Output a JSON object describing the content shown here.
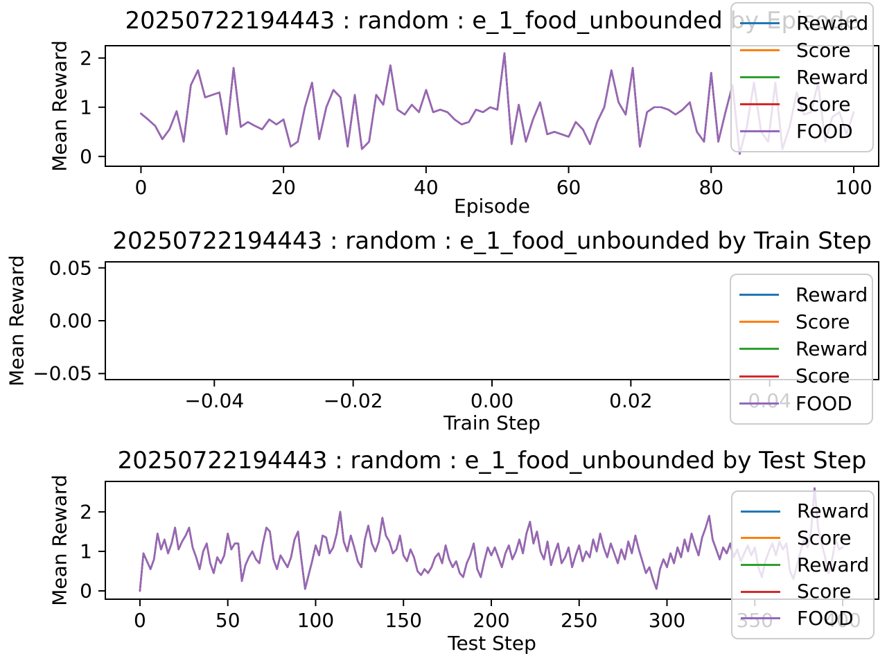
{
  "figure": {
    "background": "#ffffff",
    "text_color": "#000000",
    "spine_color": "#000000",
    "legend_border_color": "#cccccc",
    "legend_background": "rgba(255,255,255,0.8)"
  },
  "palette": {
    "blue": "#1f77b4",
    "orange": "#ff7f0e",
    "green": "#2ca02c",
    "red": "#d62728",
    "purple": "#9467bd"
  },
  "chart_data": [
    {
      "type": "line",
      "title": "20250722194443 : random : e_1_food_unbounded by Episode",
      "xlabel": "Episode",
      "ylabel": "Mean Reward",
      "xlim": [
        -5,
        103.5
      ],
      "ylim": [
        -0.2,
        2.25
      ],
      "grid": false,
      "legend_position": "upper right",
      "xticks": [
        {
          "v": 0,
          "label": "0"
        },
        {
          "v": 20,
          "label": "20"
        },
        {
          "v": 40,
          "label": "40"
        },
        {
          "v": 60,
          "label": "60"
        },
        {
          "v": 80,
          "label": "80"
        },
        {
          "v": 100,
          "label": "100"
        }
      ],
      "yticks": [
        {
          "v": 0,
          "label": "0"
        },
        {
          "v": 1,
          "label": "1"
        },
        {
          "v": 2,
          "label": "2"
        }
      ],
      "legend": [
        {
          "label": "Reward",
          "color": "#1f77b4"
        },
        {
          "label": "Score",
          "color": "#ff7f0e"
        },
        {
          "label": "Reward",
          "color": "#2ca02c"
        },
        {
          "label": "Score",
          "color": "#d62728"
        },
        {
          "label": "FOOD",
          "color": "#9467bd"
        }
      ],
      "x_start": 0,
      "x_step": 1,
      "y": [
        0.87,
        0.75,
        0.62,
        0.35,
        0.55,
        0.92,
        0.3,
        1.45,
        1.75,
        1.2,
        1.25,
        1.3,
        0.45,
        1.8,
        0.6,
        0.7,
        0.62,
        0.55,
        0.75,
        0.65,
        0.75,
        0.2,
        0.3,
        1.0,
        1.5,
        0.35,
        1.0,
        1.35,
        1.2,
        0.2,
        1.25,
        0.15,
        0.3,
        1.25,
        1.05,
        1.85,
        0.95,
        0.85,
        1.05,
        0.9,
        1.35,
        0.9,
        0.95,
        0.9,
        0.75,
        0.65,
        0.7,
        0.95,
        0.9,
        1.0,
        0.95,
        2.1,
        0.25,
        1.05,
        0.3,
        0.75,
        1.1,
        0.45,
        0.5,
        0.45,
        0.4,
        0.7,
        0.55,
        0.25,
        0.7,
        1.0,
        1.75,
        1.1,
        0.85,
        1.8,
        0.2,
        0.9,
        1.0,
        1.0,
        0.95,
        0.85,
        0.95,
        1.1,
        0.5,
        0.3,
        1.7,
        0.3,
        0.9,
        1.45,
        0.05,
        0.6,
        1.5,
        0.5,
        0.3,
        1.5,
        0.15,
        0.6,
        1.3,
        0.85,
        0.9,
        1.5,
        0.3,
        0.8,
        0.9,
        0.45,
        0.9
      ]
    },
    {
      "type": "line",
      "title": "20250722194443 : random : e_1_food_unbounded by Train Step",
      "xlabel": "Train Step",
      "ylabel": "Mean Reward",
      "xlim": [
        -0.0557,
        0.0557
      ],
      "ylim": [
        -0.0557,
        0.0557
      ],
      "grid": false,
      "legend_position": "lower right",
      "xticks": [
        {
          "v": -0.04,
          "label": "−0.04"
        },
        {
          "v": -0.02,
          "label": "−0.02"
        },
        {
          "v": 0.0,
          "label": "0.00"
        },
        {
          "v": 0.02,
          "label": "0.02"
        },
        {
          "v": 0.04,
          "label": "0.04"
        }
      ],
      "yticks": [
        {
          "v": 0.05,
          "label": "0.05"
        },
        {
          "v": 0.0,
          "label": "0.00"
        },
        {
          "v": -0.05,
          "label": "−0.05"
        }
      ],
      "legend": [
        {
          "label": "Reward",
          "color": "#1f77b4"
        },
        {
          "label": "Score",
          "color": "#ff7f0e"
        },
        {
          "label": "Reward",
          "color": "#2ca02c"
        },
        {
          "label": "Score",
          "color": "#d62728"
        },
        {
          "label": "FOOD",
          "color": "#9467bd"
        }
      ],
      "x_start": 0,
      "x_step": 1,
      "y": []
    },
    {
      "type": "line",
      "title": "20250722194443 : random : e_1_food_unbounded by Test Step",
      "xlabel": "Test Step",
      "ylabel": "Mean Reward",
      "xlim": [
        -19.7,
        420.5
      ],
      "ylim": [
        -0.21,
        2.77
      ],
      "grid": false,
      "legend_position": "upper right",
      "xticks": [
        {
          "v": 0,
          "label": "0"
        },
        {
          "v": 50,
          "label": "50"
        },
        {
          "v": 100,
          "label": "100"
        },
        {
          "v": 150,
          "label": "150"
        },
        {
          "v": 200,
          "label": "200"
        },
        {
          "v": 250,
          "label": "250"
        },
        {
          "v": 300,
          "label": "300"
        },
        {
          "v": 350,
          "label": "350"
        },
        {
          "v": 400,
          "label": "400"
        }
      ],
      "yticks": [
        {
          "v": 0,
          "label": "0"
        },
        {
          "v": 1,
          "label": "1"
        },
        {
          "v": 2,
          "label": "2"
        }
      ],
      "legend": [
        {
          "label": "Reward",
          "color": "#1f77b4"
        },
        {
          "label": "Score",
          "color": "#ff7f0e"
        },
        {
          "label": "Reward",
          "color": "#2ca02c"
        },
        {
          "label": "Score",
          "color": "#d62728"
        },
        {
          "label": "FOOD",
          "color": "#9467bd"
        }
      ],
      "x_start": 0,
      "x_step": 2,
      "y": [
        0.0,
        0.95,
        0.75,
        0.55,
        0.8,
        1.45,
        1.05,
        1.3,
        0.95,
        1.2,
        1.6,
        1.05,
        1.25,
        1.4,
        1.6,
        1.1,
        0.85,
        0.55,
        1.0,
        1.2,
        0.7,
        0.45,
        0.85,
        0.7,
        0.9,
        1.45,
        1.05,
        1.2,
        1.2,
        0.25,
        0.65,
        0.85,
        1.0,
        0.8,
        0.7,
        1.2,
        1.6,
        1.5,
        0.8,
        0.55,
        0.9,
        0.75,
        0.6,
        0.85,
        1.3,
        1.5,
        0.75,
        0.05,
        0.4,
        0.75,
        1.15,
        0.9,
        1.4,
        1.35,
        0.95,
        1.1,
        1.45,
        2.0,
        1.25,
        1.0,
        1.4,
        1.1,
        0.75,
        0.6,
        1.3,
        1.65,
        1.2,
        1.0,
        1.25,
        1.85,
        1.4,
        1.25,
        0.95,
        1.05,
        1.4,
        0.9,
        0.75,
        1.05,
        0.85,
        0.5,
        0.4,
        0.55,
        0.45,
        0.6,
        0.85,
        0.95,
        0.7,
        1.15,
        0.8,
        0.6,
        0.75,
        0.45,
        0.35,
        0.7,
        0.9,
        1.2,
        0.55,
        0.35,
        0.75,
        1.1,
        0.9,
        1.1,
        0.85,
        0.6,
        0.95,
        1.15,
        0.8,
        1.0,
        1.3,
        0.95,
        1.45,
        1.75,
        1.2,
        1.5,
        1.0,
        0.8,
        1.25,
        0.65,
        0.95,
        1.2,
        0.7,
        0.85,
        1.1,
        0.6,
        0.9,
        1.15,
        0.75,
        1.0,
        0.85,
        1.3,
        1.0,
        1.45,
        1.1,
        0.85,
        1.2,
        0.95,
        0.7,
        1.05,
        0.8,
        1.25,
        0.95,
        1.4,
        1.05,
        0.75,
        0.45,
        0.6,
        0.3,
        0.05,
        0.55,
        0.8,
        0.6,
        0.95,
        0.7,
        1.1,
        0.85,
        1.3,
        1.0,
        1.45,
        1.15,
        0.9,
        1.35,
        1.6,
        1.9,
        1.3,
        1.05,
        0.8,
        1.1,
        0.95,
        1.2,
        0.85,
        1.05,
        0.75,
        0.95,
        1.15,
        0.9,
        1.1,
        0.6,
        0.35,
        0.75,
        1.0,
        1.2,
        0.9,
        1.25,
        1.05,
        1.2,
        0.5,
        0.3,
        0.65,
        1.0,
        1.3,
        1.1,
        1.5,
        2.6,
        1.6,
        1.2,
        0.85,
        0.45,
        0.8,
        1.3,
        1.05,
        1.1
      ]
    }
  ]
}
